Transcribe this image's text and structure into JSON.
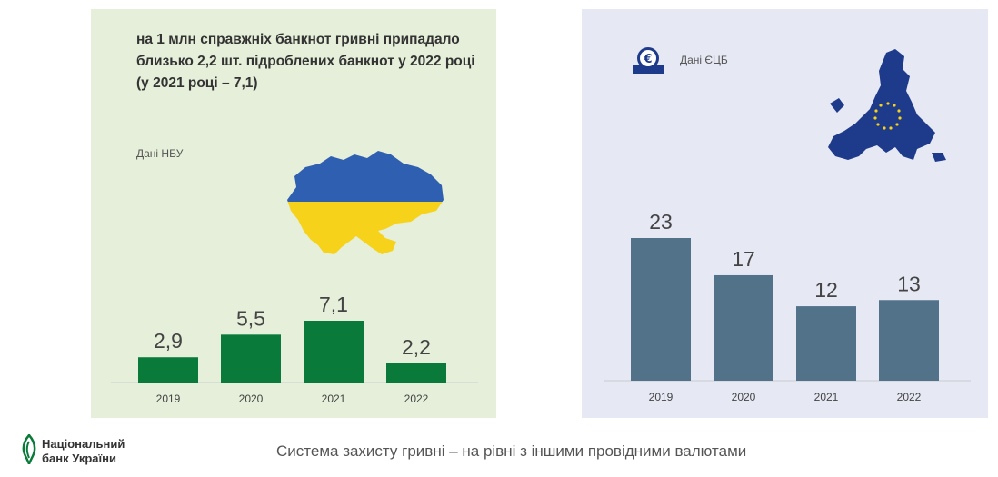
{
  "left_panel": {
    "headline": "на 1 млн справжніх банкнот гривні припадало близько 2,2 шт. підроблених банкнот у 2022 році (у 2021 році – 7,1)",
    "source": "Дані НБУ",
    "map_icon": "ukraine-flag-map-icon"
  },
  "right_panel": {
    "source": "Дані ЄЦБ",
    "logo_icon": "ecb-euro-logo-icon",
    "map_icon": "eu-flag-map-icon"
  },
  "footer": {
    "org_line1": "Національний",
    "org_line2": "банк України",
    "tagline": "Система захисту гривні – на рівні з іншими провідними валютами",
    "logo_icon": "nbu-logo-icon"
  },
  "colors": {
    "left_bg": "#e5efd9",
    "right_bg": "#e6e8f4",
    "left_bar": "#0a7a3a",
    "right_bar": "#52728a",
    "ua_blue": "#2f5fb0",
    "ua_yellow": "#f6d21a",
    "eu_blue": "#1e3a8a",
    "eu_star": "#f6d21a"
  },
  "chart_data": [
    {
      "type": "bar",
      "categories": [
        "2019",
        "2020",
        "2021",
        "2022"
      ],
      "values": [
        2.9,
        5.5,
        7.1,
        2.2
      ],
      "labels": [
        "2,9",
        "5,5",
        "7,1",
        "2,2"
      ],
      "ylim": [
        0,
        7.1
      ],
      "grid": false,
      "legend": "none"
    },
    {
      "type": "bar",
      "categories": [
        "2019",
        "2020",
        "2021",
        "2022"
      ],
      "values": [
        23,
        17,
        12,
        13
      ],
      "labels": [
        "23",
        "17",
        "12",
        "13"
      ],
      "ylim": [
        0,
        23
      ],
      "grid": false,
      "legend": "none"
    }
  ]
}
